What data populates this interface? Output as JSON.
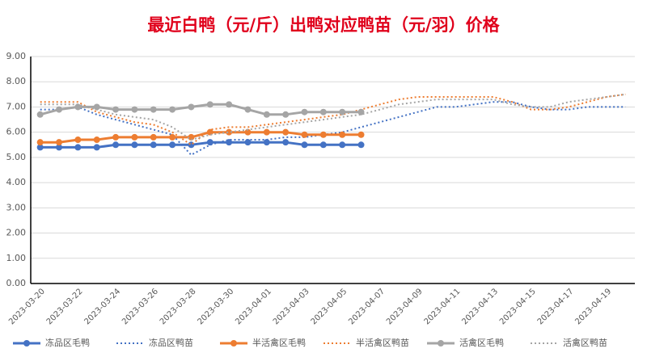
{
  "chart_data": {
    "type": "line",
    "title": "最近白鸭（元/斤）出鸭对应鸭苗（元/羽）价格",
    "categories": [
      "2023-03-20",
      null,
      "2023-03-22",
      null,
      "2023-03-24",
      null,
      "2023-03-26",
      null,
      "2023-03-28",
      null,
      "2023-03-30",
      null,
      "2023-04-01",
      null,
      "2023-04-03",
      null,
      "2023-04-05",
      null,
      "2023-04-07",
      null,
      "2023-04-09",
      null,
      "2023-04-11",
      null,
      "2023-04-13",
      null,
      "2023-04-15",
      null,
      "2023-04-17",
      null,
      "2023-04-19",
      null
    ],
    "series": [
      {
        "name": "冻品区毛鸭",
        "color": "#4472c4",
        "style": "solid",
        "values": [
          5.4,
          5.4,
          5.4,
          5.4,
          5.5,
          5.5,
          5.5,
          5.5,
          5.5,
          5.6,
          5.6,
          5.6,
          5.6,
          5.6,
          5.5,
          5.5,
          5.5,
          5.5,
          null,
          null,
          null,
          null,
          null,
          null,
          null,
          null,
          null,
          null,
          null,
          null,
          null,
          null
        ]
      },
      {
        "name": "冻品区鸭苗",
        "color": "#4472c4",
        "style": "dotted",
        "values": [
          6.9,
          6.9,
          7.0,
          6.7,
          6.5,
          6.3,
          6.1,
          5.9,
          5.1,
          5.5,
          5.7,
          5.7,
          5.7,
          5.8,
          5.8,
          5.9,
          6.0,
          6.2,
          6.4,
          6.6,
          6.8,
          7.0,
          7.0,
          7.1,
          7.2,
          7.2,
          7.0,
          6.9,
          6.9,
          7.0,
          7.0,
          7.0
        ]
      },
      {
        "name": "半活禽区毛鸭",
        "color": "#ed7d31",
        "style": "solid",
        "values": [
          5.6,
          5.6,
          5.7,
          5.7,
          5.8,
          5.8,
          5.8,
          5.8,
          5.8,
          6.0,
          6.0,
          6.0,
          6.0,
          6.0,
          5.9,
          5.9,
          5.9,
          5.9,
          null,
          null,
          null,
          null,
          null,
          null,
          null,
          null,
          null,
          null,
          null,
          null,
          null,
          null
        ]
      },
      {
        "name": "半活禽区鸭苗",
        "color": "#ed7d31",
        "style": "dotted",
        "values": [
          7.2,
          7.2,
          7.2,
          6.8,
          6.6,
          6.4,
          6.3,
          6.0,
          5.5,
          6.1,
          6.2,
          6.2,
          6.3,
          6.4,
          6.5,
          6.6,
          6.7,
          6.9,
          7.1,
          7.3,
          7.4,
          7.4,
          7.4,
          7.4,
          7.4,
          7.2,
          6.9,
          6.9,
          7.0,
          7.2,
          7.4,
          7.5
        ]
      },
      {
        "name": "活禽区毛鸭",
        "color": "#a5a5a5",
        "style": "solid",
        "values": [
          6.7,
          6.9,
          7.0,
          7.0,
          6.9,
          6.9,
          6.9,
          6.9,
          7.0,
          7.1,
          7.1,
          6.9,
          6.7,
          6.7,
          6.8,
          6.8,
          6.8,
          6.8,
          null,
          null,
          null,
          null,
          null,
          null,
          null,
          null,
          null,
          null,
          null,
          null,
          null,
          null
        ]
      },
      {
        "name": "活禽区鸭苗",
        "color": "#a5a5a5",
        "style": "dotted",
        "values": [
          7.1,
          7.1,
          7.1,
          6.9,
          6.7,
          6.6,
          6.5,
          6.2,
          5.7,
          5.9,
          6.0,
          6.1,
          6.2,
          6.3,
          6.4,
          6.5,
          6.6,
          6.7,
          6.9,
          7.1,
          7.2,
          7.3,
          7.3,
          7.3,
          7.3,
          7.1,
          7.0,
          7.0,
          7.2,
          7.3,
          7.4,
          7.5
        ]
      }
    ],
    "ylim": [
      0,
      9
    ],
    "yticks": [
      {
        "value": 0,
        "label": "0.00"
      },
      {
        "value": 1,
        "label": "1.00"
      },
      {
        "value": 2,
        "label": "2.00"
      },
      {
        "value": 3,
        "label": "3.00"
      },
      {
        "value": 4,
        "label": "4.00"
      },
      {
        "value": 5,
        "label": "5.00"
      },
      {
        "value": 6,
        "label": "6.00"
      },
      {
        "value": 7,
        "label": "7.00"
      },
      {
        "value": 8,
        "label": "8.00"
      },
      {
        "value": 9,
        "label": "9.00"
      }
    ],
    "grid": true,
    "legend": "bottom"
  }
}
